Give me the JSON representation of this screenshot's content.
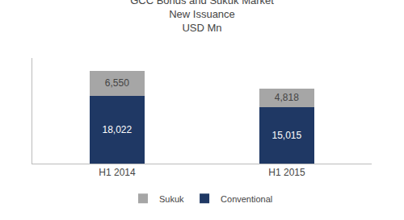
{
  "chart_data": {
    "type": "bar",
    "title": "GCC Bonds and Sukuk Market\nNew Issuance\nUSD Mn",
    "categories": [
      "H1 2014",
      "H1 2015"
    ],
    "series": [
      {
        "name": "Conventional",
        "color": "#1f3864",
        "values": [
          18022,
          15015
        ],
        "value_labels": [
          "18,022",
          "15,015"
        ]
      },
      {
        "name": "Sukuk",
        "color": "#a6a6a6",
        "values": [
          6550,
          4818
        ],
        "value_labels": [
          "6,550",
          "4,818"
        ]
      }
    ],
    "stacked": true,
    "data_labels": true,
    "ylim": [
      0,
      28000
    ],
    "tick_labels": "x",
    "grid": false,
    "legend": "bottom"
  }
}
